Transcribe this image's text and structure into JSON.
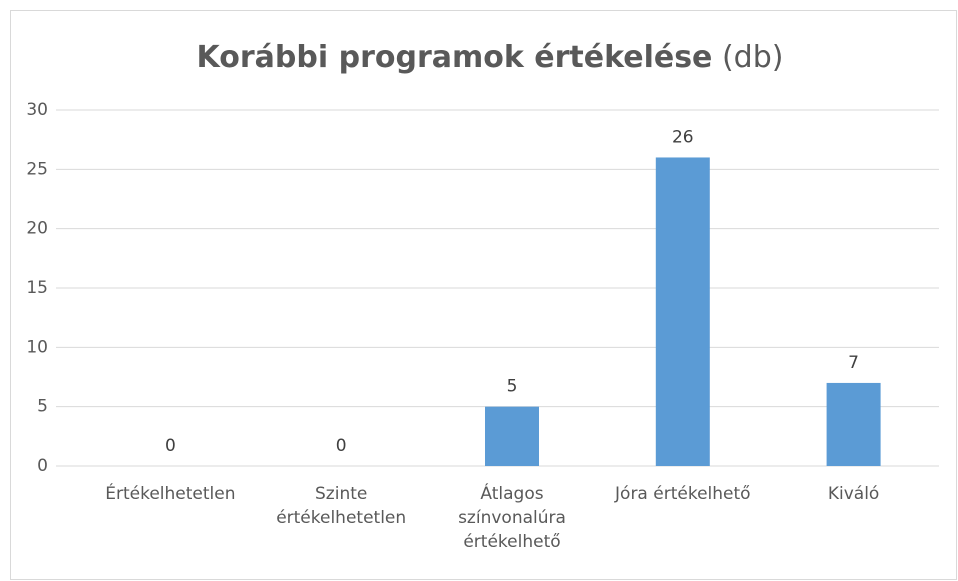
{
  "chart_data": {
    "type": "bar",
    "title": "Korábbi programok értékelése",
    "unit": "(db)",
    "categories": [
      "Értékelhetetlen",
      "Szinte értékelhetetlen",
      "Átlagos színvonalúra értékelhető",
      "Jóra értékelhető",
      "Kiváló"
    ],
    "values": [
      0,
      0,
      5,
      26,
      7
    ],
    "color": "#5b9bd5",
    "ylim": [
      0,
      30
    ],
    "yticks": [
      0,
      5,
      10,
      15,
      20,
      25,
      30
    ],
    "grid": true
  }
}
